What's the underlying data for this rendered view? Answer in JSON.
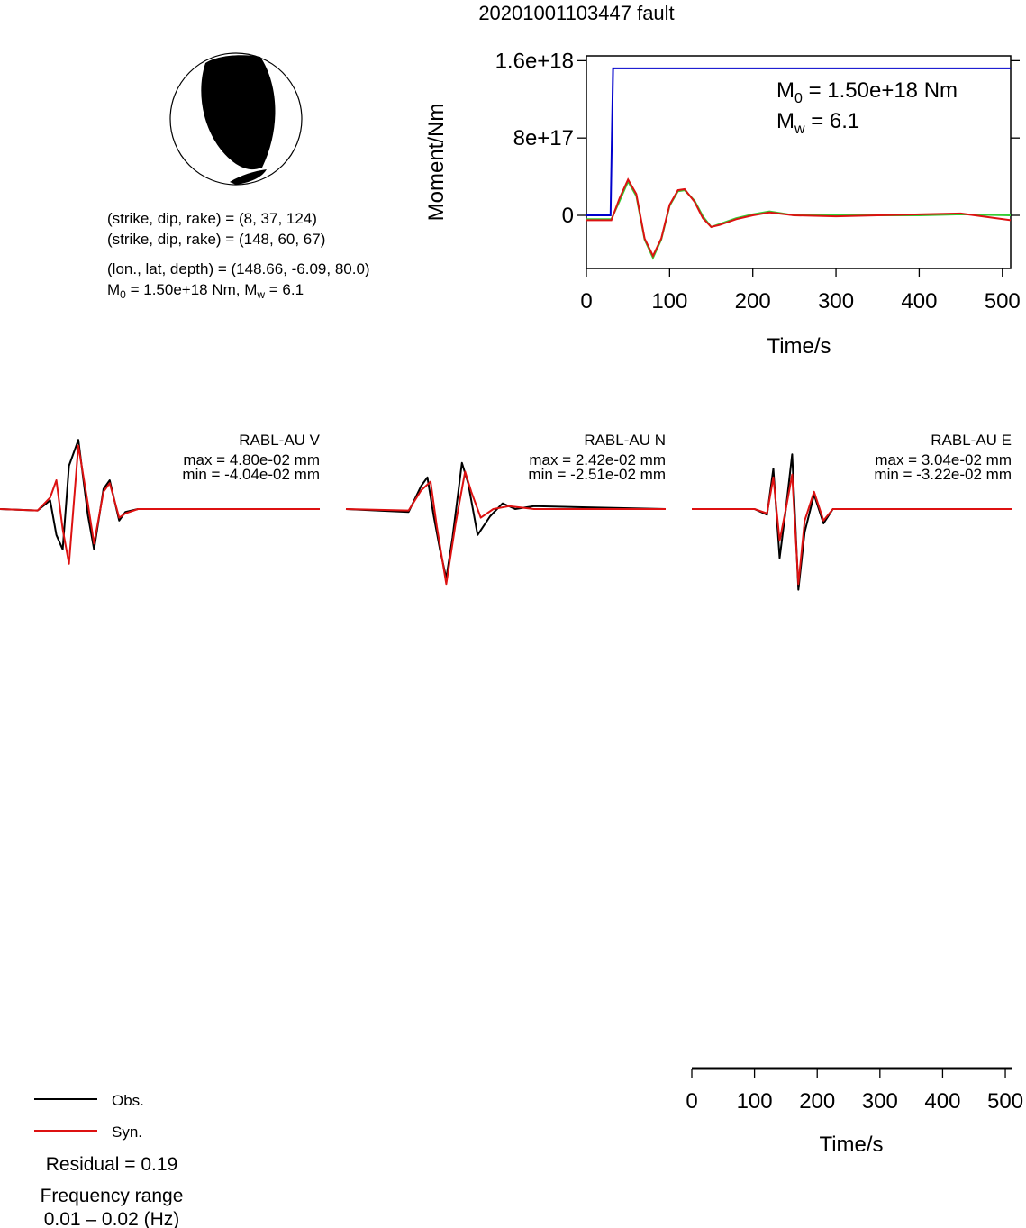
{
  "title": "20201001103447 fault",
  "colors": {
    "observed": "#000000",
    "synthetic": "#dd1111",
    "moment": "#0000cc",
    "stf_alt": "#33cc33",
    "beachball_fill": "#000000"
  },
  "beachball": {
    "planes_label": "(strike, dip, rake) =",
    "plane1": "(8, 37, 124)",
    "plane2": "(148, 60, 67)",
    "location_label": "(lon., lat, depth) =",
    "location": "(148.66, -6.09, 80.0)",
    "m0_text": "M",
    "m0_sub": "0",
    "m0_value": " = 1.50e+18 Nm, M",
    "mw_sub": "w",
    "mw_value": " = 6.1"
  },
  "moment_panel": {
    "ylabel": "Moment/Nm",
    "xlabel": "Time/s",
    "m0_line_prefix": "M",
    "m0_line_sub": "0",
    "m0_line_value": " = 1.50e+18 Nm",
    "mw_line_prefix": "M",
    "mw_line_sub": "w",
    "mw_line_value": " = 6.1"
  },
  "waveform_axis": {
    "xlabel": "Time/s"
  },
  "legend": {
    "obs": "Obs.",
    "syn": "Syn.",
    "residual": "Residual = 0.19",
    "freq_label": "Frequency range",
    "freq_value": "0.01 – 0.02 (Hz)"
  },
  "chart_data": [
    {
      "type": "line",
      "name": "moment-rate-panel",
      "xlabel": "Time/s",
      "ylabel": "Moment/Nm",
      "xlim": [
        0,
        510
      ],
      "ylim": [
        -5.5e+17,
        1.65e+18
      ],
      "x_ticks": [
        0,
        100,
        200,
        300,
        400,
        500
      ],
      "y_ticks": [
        0,
        8e+17,
        1.6e+18
      ],
      "y_tick_labels": [
        "0",
        "8e+17",
        "1.6e+18"
      ],
      "series": [
        {
          "color": "#0000cc",
          "x": [
            0,
            29,
            31,
            32,
            510
          ],
          "y": [
            0,
            0,
            1e+18,
            1.52e+18,
            1.52e+18
          ]
        },
        {
          "color": "#33cc33",
          "x": [
            0,
            30,
            40,
            50,
            60,
            70,
            80,
            90,
            100,
            110,
            118,
            130,
            140,
            150,
            160,
            180,
            200,
            220,
            250,
            300,
            350,
            400,
            450,
            510
          ],
          "y": [
            -4e+16,
            -4e+16,
            1.5e+17,
            3.5e+17,
            2e+17,
            -2.5e+17,
            -4.4e+17,
            -2.5e+17,
            1e+17,
            2.5e+17,
            2.6e+17,
            1.5e+17,
            -1e+16,
            -1.2e+17,
            -9e+16,
            -3e+16,
            1e+16,
            4e+16,
            0,
            0,
            0,
            0,
            1e+16,
            0
          ]
        },
        {
          "color": "#dd1111",
          "x": [
            0,
            30,
            40,
            50,
            60,
            70,
            80,
            90,
            100,
            110,
            118,
            130,
            140,
            150,
            160,
            180,
            200,
            220,
            250,
            300,
            350,
            400,
            450,
            510
          ],
          "y": [
            -5e+16,
            -5e+16,
            1.8e+17,
            3.7e+17,
            2.2e+17,
            -2.4e+17,
            -4.2e+17,
            -2.4e+17,
            1.1e+17,
            2.6e+17,
            2.7e+17,
            1.4e+17,
            -3e+16,
            -1.2e+17,
            -1e+17,
            -4e+16,
            0,
            3e+16,
            0,
            -1e+16,
            0,
            1e+16,
            2e+16,
            -5e+16
          ]
        }
      ]
    },
    {
      "type": "line",
      "name": "waveforms",
      "xlim": [
        0,
        510
      ],
      "x_ticks": [
        0,
        100,
        200,
        300,
        400,
        500
      ],
      "units": "mm",
      "stations": [
        {
          "label": "RABL-AU V",
          "max": "max = 4.80e-02 mm",
          "min": "min = -4.04e-02 mm",
          "obs": [
            [
              0,
              0
            ],
            [
              60,
              -1
            ],
            [
              80,
              6
            ],
            [
              90,
              -18
            ],
            [
              100,
              -28
            ],
            [
              110,
              30
            ],
            [
              125,
              48
            ],
            [
              140,
              -4
            ],
            [
              150,
              -28
            ],
            [
              165,
              14
            ],
            [
              175,
              20
            ],
            [
              190,
              -8
            ],
            [
              200,
              -2
            ],
            [
              220,
              0
            ],
            [
              280,
              0
            ],
            [
              510,
              0
            ]
          ],
          "syn": [
            [
              0,
              0
            ],
            [
              60,
              -1
            ],
            [
              80,
              8
            ],
            [
              90,
              20
            ],
            [
              100,
              -14
            ],
            [
              110,
              -38
            ],
            [
              125,
              44
            ],
            [
              140,
              4
            ],
            [
              150,
              -24
            ],
            [
              165,
              12
            ],
            [
              175,
              18
            ],
            [
              190,
              -6
            ],
            [
              200,
              -3
            ],
            [
              220,
              0
            ],
            [
              280,
              0
            ],
            [
              510,
              0
            ]
          ]
        },
        {
          "label": "RABL-AU N",
          "max": "max = 2.42e-02 mm",
          "min": "min = -2.51e-02 mm",
          "obs": [
            [
              0,
              0
            ],
            [
              100,
              -2
            ],
            [
              120,
              16
            ],
            [
              130,
              22
            ],
            [
              140,
              -5
            ],
            [
              150,
              -28
            ],
            [
              160,
              -48
            ],
            [
              170,
              -20
            ],
            [
              185,
              32
            ],
            [
              195,
              18
            ],
            [
              210,
              -18
            ],
            [
              230,
              -5
            ],
            [
              250,
              4
            ],
            [
              270,
              0
            ],
            [
              300,
              2
            ],
            [
              510,
              0
            ]
          ],
          "syn": [
            [
              0,
              0
            ],
            [
              100,
              -1
            ],
            [
              120,
              13
            ],
            [
              135,
              19
            ],
            [
              145,
              -12
            ],
            [
              160,
              -52
            ],
            [
              175,
              -10
            ],
            [
              190,
              26
            ],
            [
              200,
              12
            ],
            [
              215,
              -6
            ],
            [
              235,
              0
            ],
            [
              260,
              2
            ],
            [
              300,
              0
            ],
            [
              510,
              0
            ]
          ]
        },
        {
          "label": "RABL-AU E",
          "max": "max = 3.04e-02 mm",
          "min": "min = -3.22e-02 mm",
          "obs": [
            [
              0,
              0
            ],
            [
              100,
              0
            ],
            [
              120,
              -4
            ],
            [
              130,
              28
            ],
            [
              140,
              -34
            ],
            [
              150,
              0
            ],
            [
              160,
              38
            ],
            [
              170,
              -56
            ],
            [
              180,
              -16
            ],
            [
              195,
              10
            ],
            [
              210,
              -10
            ],
            [
              225,
              0
            ],
            [
              260,
              0
            ],
            [
              510,
              0
            ]
          ],
          "syn": [
            [
              0,
              0
            ],
            [
              100,
              0
            ],
            [
              120,
              -3
            ],
            [
              130,
              22
            ],
            [
              140,
              -22
            ],
            [
              150,
              0
            ],
            [
              160,
              24
            ],
            [
              170,
              -52
            ],
            [
              180,
              -8
            ],
            [
              195,
              12
            ],
            [
              210,
              -8
            ],
            [
              225,
              0
            ],
            [
              260,
              0
            ],
            [
              510,
              0
            ]
          ]
        }
      ]
    }
  ]
}
